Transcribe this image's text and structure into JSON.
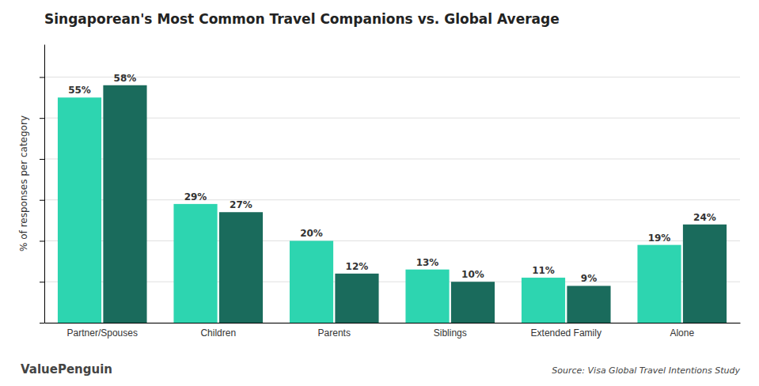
{
  "chart_data": {
    "type": "bar",
    "title": "Singaporean's Most Common Travel Companions vs. Global Average",
    "ylabel": "% of responses per category",
    "categories": [
      "Partner/Spouses",
      "Children",
      "Parents",
      "Siblings",
      "Extended Family",
      "Alone"
    ],
    "series": [
      {
        "color": "#2dd5b0",
        "values": [
          55,
          29,
          20,
          13,
          11,
          19
        ],
        "value_labels": [
          "55%",
          "29%",
          "20%",
          "13%",
          "11%",
          "19%"
        ]
      },
      {
        "color": "#1a6b5c",
        "values": [
          58,
          27,
          12,
          10,
          9,
          24
        ],
        "value_labels": [
          "58%",
          "27%",
          "12%",
          "10%",
          "9%",
          "24%"
        ]
      }
    ],
    "ylim": [
      0,
      68
    ],
    "yticks": [
      0,
      10,
      20,
      30,
      40,
      50,
      60
    ],
    "grid": true,
    "data_labels": true,
    "tick_labels": "x",
    "annotations": [
      "Source: Visa Global Travel Intentions Study",
      "ValuePenguin"
    ]
  }
}
